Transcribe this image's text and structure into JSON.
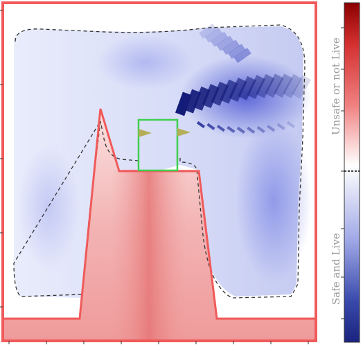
{
  "chart_data": {
    "type": "heatmap",
    "title": "",
    "xlabel": "",
    "ylabel": "",
    "colorbar": {
      "top_label": "Unsafe or not Live",
      "bottom_label": "Safe and Live",
      "colors": [
        "#1a237e",
        "#3f51b5",
        "#c5cae9",
        "#ffffff",
        "#ffcdd2",
        "#e53935",
        "#8b0000"
      ],
      "threshold_marker": "dashed"
    },
    "regions": [
      {
        "name": "obstacle",
        "color": "#f05a5a"
      },
      {
        "name": "goal",
        "color": "#3fcf4f"
      },
      {
        "name": "zero-level-set",
        "style": "dashed",
        "color": "#333333"
      }
    ],
    "grid": false,
    "legend": "none"
  }
}
